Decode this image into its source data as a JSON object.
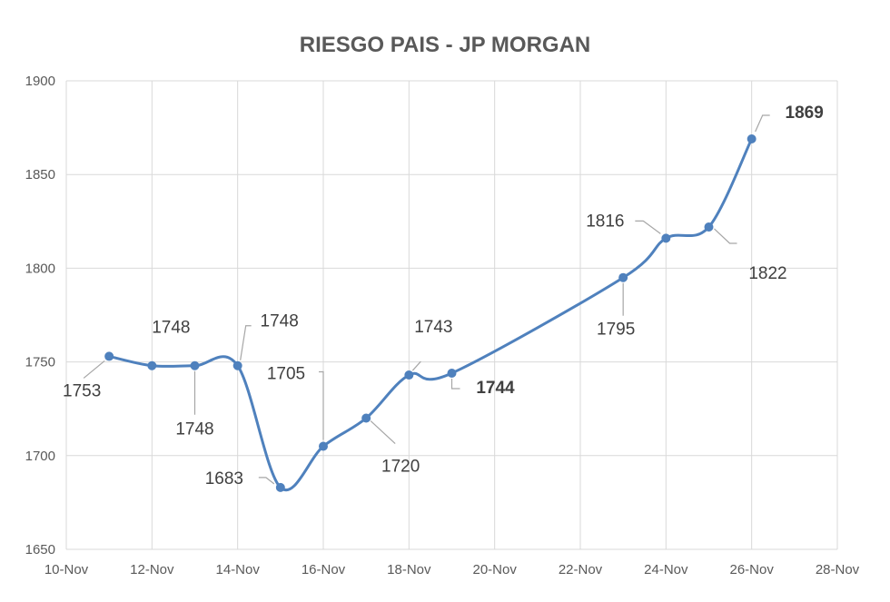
{
  "chart_data": {
    "type": "line",
    "title": "RIESGO PAIS - JP MORGAN",
    "xlabel": "",
    "ylabel": "",
    "x_axis": {
      "type": "date",
      "tick_labels": [
        "10-Nov",
        "12-Nov",
        "14-Nov",
        "16-Nov",
        "18-Nov",
        "20-Nov",
        "22-Nov",
        "24-Nov",
        "26-Nov",
        "28-Nov"
      ],
      "tick_values": [
        "2019-11-10",
        "2019-11-12",
        "2019-11-14",
        "2019-11-16",
        "2019-11-18",
        "2019-11-20",
        "2019-11-22",
        "2019-11-24",
        "2019-11-26",
        "2019-11-28"
      ],
      "range": [
        "2019-11-10",
        "2019-11-28"
      ]
    },
    "y_axis": {
      "tick_labels": [
        "1650",
        "1700",
        "1750",
        "1800",
        "1850",
        "1900"
      ],
      "range": [
        1650,
        1900
      ]
    },
    "grid": true,
    "legend": "none",
    "series": [
      {
        "color": "#4f81bd",
        "smooth": true,
        "points": [
          {
            "x": "2019-11-11",
            "y": 1753,
            "label": "1753",
            "bold": false
          },
          {
            "x": "2019-11-12",
            "y": 1748,
            "label": "1748",
            "bold": false
          },
          {
            "x": "2019-11-13",
            "y": 1748,
            "label": "1748",
            "bold": false
          },
          {
            "x": "2019-11-14",
            "y": 1748,
            "label": "1748",
            "bold": false
          },
          {
            "x": "2019-11-15",
            "y": 1683,
            "label": "1683",
            "bold": false
          },
          {
            "x": "2019-11-16",
            "y": 1705,
            "label": "1705",
            "bold": false
          },
          {
            "x": "2019-11-17",
            "y": 1720,
            "label": "1720",
            "bold": false
          },
          {
            "x": "2019-11-18",
            "y": 1743,
            "label": "1743",
            "bold": false
          },
          {
            "x": "2019-11-19",
            "y": 1744,
            "label": "1744",
            "bold": true
          },
          {
            "x": "2019-11-23",
            "y": 1795,
            "label": "1795",
            "bold": false
          },
          {
            "x": "2019-11-24",
            "y": 1816,
            "label": "1816",
            "bold": false
          },
          {
            "x": "2019-11-25",
            "y": 1822,
            "label": "1822",
            "bold": false
          },
          {
            "x": "2019-11-26",
            "y": 1869,
            "label": "1869",
            "bold": true
          }
        ]
      }
    ]
  }
}
